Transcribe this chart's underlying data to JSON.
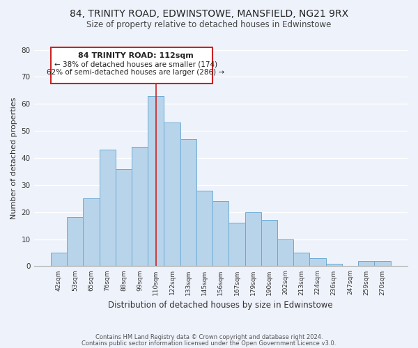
{
  "title1": "84, TRINITY ROAD, EDWINSTOWE, MANSFIELD, NG21 9RX",
  "title2": "Size of property relative to detached houses in Edwinstowe",
  "xlabel": "Distribution of detached houses by size in Edwinstowe",
  "ylabel": "Number of detached properties",
  "bar_labels": [
    "42sqm",
    "53sqm",
    "65sqm",
    "76sqm",
    "88sqm",
    "99sqm",
    "110sqm",
    "122sqm",
    "133sqm",
    "145sqm",
    "156sqm",
    "167sqm",
    "179sqm",
    "190sqm",
    "202sqm",
    "213sqm",
    "224sqm",
    "236sqm",
    "247sqm",
    "259sqm",
    "270sqm"
  ],
  "bar_values": [
    5,
    18,
    25,
    43,
    36,
    44,
    63,
    53,
    47,
    28,
    24,
    16,
    20,
    17,
    10,
    5,
    3,
    1,
    0,
    2,
    2
  ],
  "bar_color": "#b8d4ea",
  "bar_edge_color": "#6aaad4",
  "ylim": [
    0,
    80
  ],
  "yticks": [
    0,
    10,
    20,
    30,
    40,
    50,
    60,
    70,
    80
  ],
  "annotation_title": "84 TRINITY ROAD: 112sqm",
  "annotation_line1": "← 38% of detached houses are smaller (174)",
  "annotation_line2": "62% of semi-detached houses are larger (286) →",
  "footer1": "Contains HM Land Registry data © Crown copyright and database right 2024.",
  "footer2": "Contains public sector information licensed under the Open Government Licence v3.0.",
  "highlight_bar_index": 6,
  "background_color": "#eef2fb",
  "vline_color": "#cc2222",
  "box_edge_color": "#cc2222"
}
